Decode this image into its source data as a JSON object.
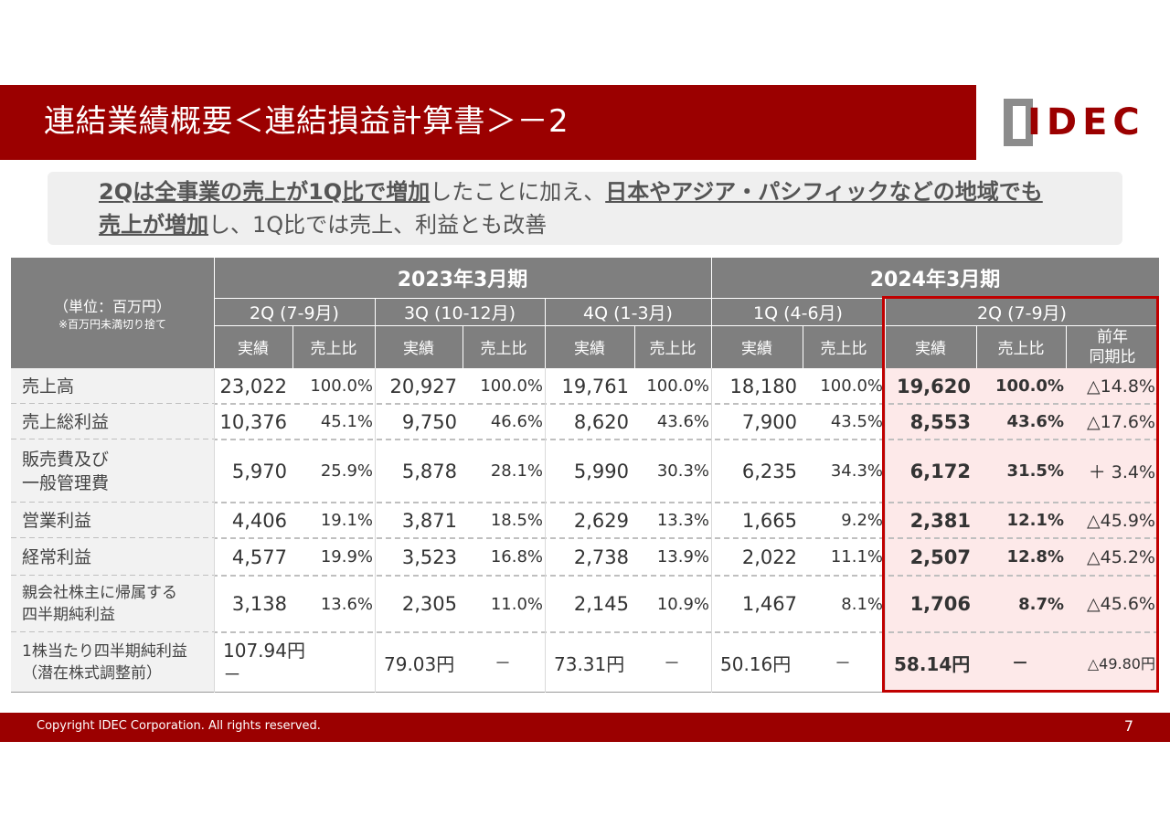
{
  "header": {
    "title": "連結業績概要＜連結損益計算書＞－2",
    "logo_text": "IDEC"
  },
  "summary": {
    "line1_u1": "2Qは全事業の売上が1Q比で増加",
    "line1_mid": "したことに加え、",
    "line1_u2": "日本やアジア・パシフィックなどの地域でも",
    "line2_u": "売上が増加",
    "line2_rest": "し、1Q比では売上、利益とも改善"
  },
  "table": {
    "unit": "（単位：百万円）",
    "unit_note": "※百万円未満切り捨て",
    "fy2023": "2023年3月期",
    "fy2024": "2024年3月期",
    "quarters": [
      "2Q (7-9月)",
      "3Q (10-12月)",
      "4Q (1-3月)",
      "1Q (4-6月)",
      "2Q (7-9月)"
    ],
    "sub_actual": "実績",
    "sub_ratio": "売上比",
    "sub_yoy": "前年\n同期比",
    "rows": [
      {
        "label": "売上高",
        "q1": "23,022",
        "r1": "100.0%",
        "q2": "20,927",
        "r2": "100.0%",
        "q3": "19,761",
        "r3": "100.0%",
        "q4": "18,180",
        "r4": "100.0%",
        "q5": "19,620",
        "r5": "100.0%",
        "yoy": "△14.8%"
      },
      {
        "label": "売上総利益",
        "q1": "10,376",
        "r1": "45.1%",
        "q2": "9,750",
        "r2": "46.6%",
        "q3": "8,620",
        "r3": "43.6%",
        "q4": "7,900",
        "r4": "43.5%",
        "q5": "8,553",
        "r5": "43.6%",
        "yoy": "△17.6%"
      },
      {
        "label": "販売費及び\n一般管理費",
        "q1": "5,970",
        "r1": "25.9%",
        "q2": "5,878",
        "r2": "28.1%",
        "q3": "5,990",
        "r3": "30.3%",
        "q4": "6,235",
        "r4": "34.3%",
        "q5": "6,172",
        "r5": "31.5%",
        "yoy": "＋ 3.4%"
      },
      {
        "label": "営業利益",
        "q1": "4,406",
        "r1": "19.1%",
        "q2": "3,871",
        "r2": "18.5%",
        "q3": "2,629",
        "r3": "13.3%",
        "q4": "1,665",
        "r4": "9.2%",
        "q5": "2,381",
        "r5": "12.1%",
        "yoy": "△45.9%"
      },
      {
        "label": "経常利益",
        "q1": "4,577",
        "r1": "19.9%",
        "q2": "3,523",
        "r2": "16.8%",
        "q3": "2,738",
        "r3": "13.9%",
        "q4": "2,022",
        "r4": "11.1%",
        "q5": "2,507",
        "r5": "12.8%",
        "yoy": "△45.2%"
      },
      {
        "label": "親会社株主に帰属する\n四半期純利益",
        "q1": "3,138",
        "r1": "13.6%",
        "q2": "2,305",
        "r2": "11.0%",
        "q3": "2,145",
        "r3": "10.9%",
        "q4": "1,467",
        "r4": "8.1%",
        "q5": "1,706",
        "r5": "8.7%",
        "yoy": "△45.6%"
      },
      {
        "label": "1株当たり四半期純利益\n（潜在株式調整前）",
        "q1": "107.94円\n－",
        "r1": "",
        "q2": "79.03円",
        "r2": "－",
        "q3": "73.31円",
        "r3": "－",
        "q4": "50.16円",
        "r4": "－",
        "q5": "58.14円",
        "r5": "－",
        "yoy": "△49.80円"
      }
    ]
  },
  "footer": {
    "copyright": "Copyright IDEC Corporation. All rights reserved.",
    "page": "7"
  },
  "colors": {
    "brand_red": "#9b0000",
    "header_gray": "#7f7f7f",
    "highlight_border": "#c00000",
    "highlight_fill": "#fde9e9"
  }
}
